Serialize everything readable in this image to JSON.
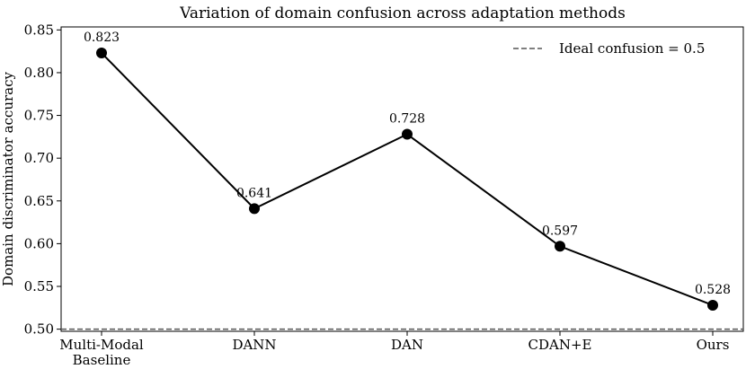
{
  "chart_data": {
    "type": "line",
    "title": "Variation of domain confusion across adaptation methods",
    "xlabel": "",
    "ylabel": "Domain discriminator accuracy",
    "categories": [
      [
        "Multi-Modal",
        "Baseline"
      ],
      [
        "DANN"
      ],
      [
        "DAN"
      ],
      [
        "CDAN+E"
      ],
      [
        "Ours"
      ]
    ],
    "series": [
      {
        "values": [
          0.823,
          0.641,
          0.728,
          0.597,
          0.528
        ],
        "labels": [
          "0.823",
          "0.641",
          "0.728",
          "0.597",
          "0.528"
        ],
        "color": "#000000",
        "marker": "circle"
      }
    ],
    "reference_line": {
      "y": 0.5,
      "label": "Ideal confusion = 0.5",
      "style": "dashed",
      "color": "#555555"
    },
    "yticks": [
      "0.50",
      "0.55",
      "0.60",
      "0.65",
      "0.70",
      "0.75",
      "0.80",
      "0.85"
    ],
    "ylim": [
      0.4975,
      0.8535
    ],
    "grid": false,
    "legend": {
      "position": "top-right",
      "entries": [
        "Ideal confusion = 0.5"
      ]
    }
  }
}
